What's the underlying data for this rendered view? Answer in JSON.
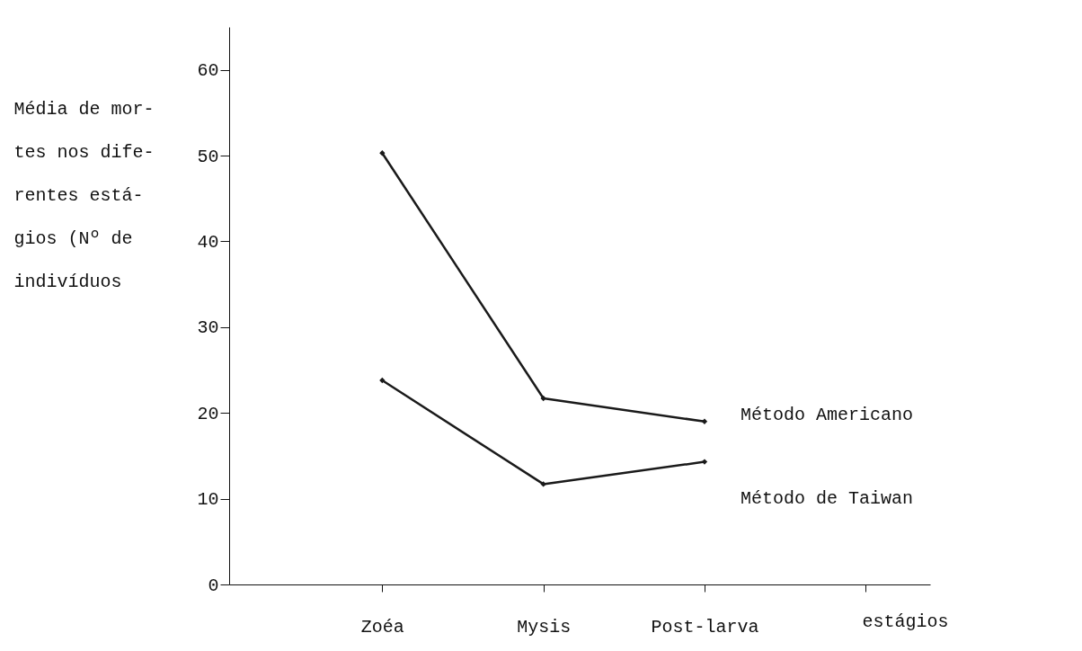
{
  "chart_data": {
    "type": "line",
    "ylabel": "Média de mor-\ntes nos dife-\nrentes está-\ngios (Nº  de\nindivíduos",
    "xlabel": "estágios",
    "categories": [
      "Zoéa",
      "Mysis",
      "Post-larva",
      null
    ],
    "series": [
      {
        "name": "Método Americano",
        "color": "#1a1a1a",
        "values": [
          50.3,
          21.7,
          19,
          null
        ]
      },
      {
        "name": "Método de Taiwan",
        "color": "#1a1a1a",
        "values": [
          23.8,
          11.7,
          14.3,
          null
        ]
      }
    ],
    "ylim": [
      0,
      65
    ],
    "yticks": [
      0,
      10,
      20,
      30,
      40,
      50,
      60
    ],
    "grid": false,
    "legend": false,
    "marker": "diamond",
    "line_style": "solid"
  }
}
